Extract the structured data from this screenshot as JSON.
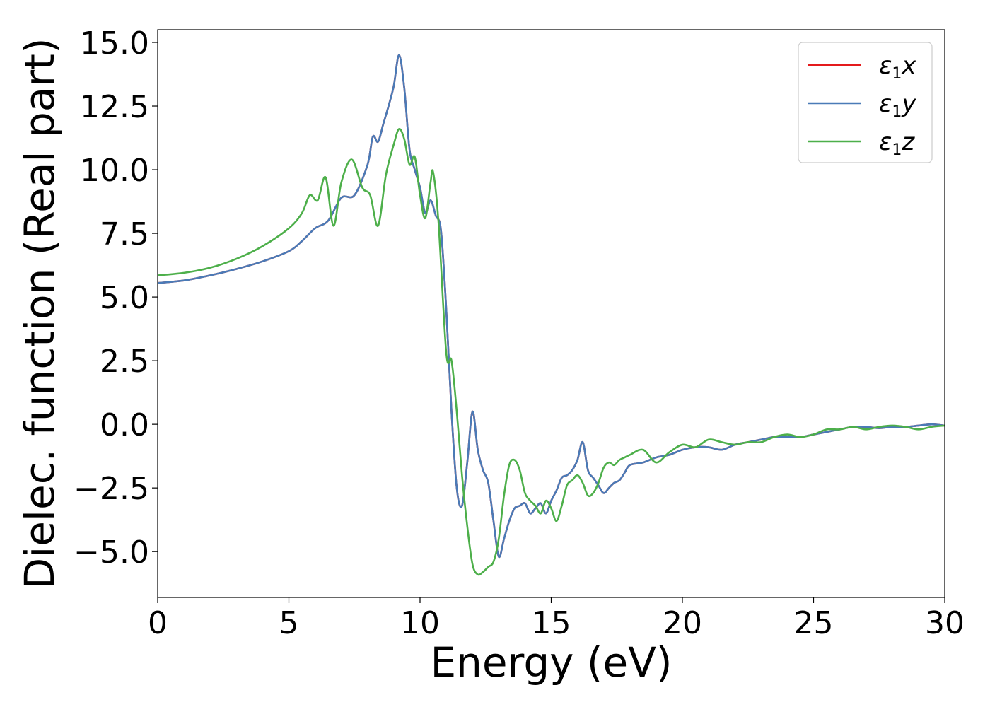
{
  "chart_data": {
    "type": "line",
    "title": "",
    "xlabel": "Energy (eV)",
    "ylabel": "Dielec. function (Real part)",
    "xlim": [
      0,
      30
    ],
    "ylim": [
      -6.8,
      15.5
    ],
    "x_ticks": [
      0,
      5,
      10,
      15,
      20,
      25,
      30
    ],
    "x_tick_labels": [
      "0",
      "5",
      "10",
      "15",
      "20",
      "25",
      "30"
    ],
    "y_ticks": [
      -5.0,
      -2.5,
      0.0,
      2.5,
      5.0,
      7.5,
      10.0,
      12.5,
      15.0
    ],
    "y_tick_labels": [
      "−5.0",
      "−2.5",
      "0.0",
      "2.5",
      "5.0",
      "7.5",
      "10.0",
      "12.5",
      "15.0"
    ],
    "grid": false,
    "legend_position": "top-right",
    "series": [
      {
        "name": "ε1x",
        "legend_symbol": "ε",
        "legend_sub": "1",
        "legend_suffix": "x",
        "color": "#e41a1c",
        "x": [
          0,
          1,
          2,
          3,
          4,
          5,
          5.5,
          6,
          6.5,
          7,
          7.5,
          8,
          8.2,
          8.4,
          8.6,
          8.8,
          9,
          9.2,
          9.4,
          9.6,
          9.8,
          10,
          10.2,
          10.4,
          10.6,
          10.8,
          11,
          11.2,
          11.4,
          11.6,
          11.8,
          12,
          12.2,
          12.4,
          12.6,
          12.8,
          13,
          13.2,
          13.4,
          13.6,
          13.8,
          14,
          14.2,
          14.4,
          14.6,
          14.8,
          15,
          15.2,
          15.4,
          15.6,
          15.8,
          16,
          16.2,
          16.4,
          16.6,
          16.8,
          17,
          17.2,
          17.4,
          17.6,
          17.8,
          18,
          18.5,
          19,
          19.5,
          20,
          20.5,
          21,
          21.5,
          22,
          22.5,
          23,
          23.5,
          24,
          24.5,
          25,
          25.5,
          26,
          26.5,
          27,
          27.5,
          28,
          28.5,
          29,
          29.5,
          30
        ],
        "y": [
          5.55,
          5.65,
          5.85,
          6.1,
          6.4,
          6.8,
          7.2,
          7.7,
          8.0,
          8.9,
          9.0,
          10.2,
          11.3,
          11.1,
          11.8,
          12.5,
          13.3,
          14.5,
          13.2,
          10.8,
          10.0,
          9.3,
          8.3,
          8.8,
          8.2,
          7.6,
          4.5,
          0.5,
          -2.5,
          -3.2,
          -1.5,
          0.5,
          -1.0,
          -1.8,
          -2.3,
          -3.8,
          -5.2,
          -4.5,
          -3.8,
          -3.3,
          -3.2,
          -3.1,
          -3.5,
          -3.3,
          -3.1,
          -3.5,
          -3.0,
          -2.6,
          -2.1,
          -2.0,
          -1.8,
          -1.4,
          -0.7,
          -1.8,
          -2.1,
          -2.4,
          -2.7,
          -2.5,
          -2.3,
          -2.2,
          -1.9,
          -1.6,
          -1.5,
          -1.3,
          -1.2,
          -1.0,
          -0.9,
          -0.9,
          -1.0,
          -0.8,
          -0.7,
          -0.6,
          -0.5,
          -0.5,
          -0.5,
          -0.4,
          -0.3,
          -0.2,
          -0.1,
          -0.1,
          -0.15,
          -0.1,
          -0.1,
          -0.05,
          0.0,
          -0.05
        ]
      },
      {
        "name": "ε1y",
        "legend_symbol": "ε",
        "legend_sub": "1",
        "legend_suffix": "y",
        "color": "#4a7bb7",
        "x": [
          0,
          1,
          2,
          3,
          4,
          5,
          5.5,
          6,
          6.5,
          7,
          7.5,
          8,
          8.2,
          8.4,
          8.6,
          8.8,
          9,
          9.2,
          9.4,
          9.6,
          9.8,
          10,
          10.2,
          10.4,
          10.6,
          10.8,
          11,
          11.2,
          11.4,
          11.6,
          11.8,
          12,
          12.2,
          12.4,
          12.6,
          12.8,
          13,
          13.2,
          13.4,
          13.6,
          13.8,
          14,
          14.2,
          14.4,
          14.6,
          14.8,
          15,
          15.2,
          15.4,
          15.6,
          15.8,
          16,
          16.2,
          16.4,
          16.6,
          16.8,
          17,
          17.2,
          17.4,
          17.6,
          17.8,
          18,
          18.5,
          19,
          19.5,
          20,
          20.5,
          21,
          21.5,
          22,
          22.5,
          23,
          23.5,
          24,
          24.5,
          25,
          25.5,
          26,
          26.5,
          27,
          27.5,
          28,
          28.5,
          29,
          29.5,
          30
        ],
        "y": [
          5.55,
          5.65,
          5.85,
          6.1,
          6.4,
          6.8,
          7.2,
          7.7,
          8.0,
          8.9,
          9.0,
          10.2,
          11.3,
          11.1,
          11.8,
          12.5,
          13.3,
          14.5,
          13.2,
          10.8,
          10.0,
          9.3,
          8.3,
          8.8,
          8.2,
          7.6,
          4.5,
          0.5,
          -2.5,
          -3.2,
          -1.5,
          0.5,
          -1.0,
          -1.8,
          -2.3,
          -3.8,
          -5.2,
          -4.5,
          -3.8,
          -3.3,
          -3.2,
          -3.1,
          -3.5,
          -3.3,
          -3.1,
          -3.5,
          -3.0,
          -2.6,
          -2.1,
          -2.0,
          -1.8,
          -1.4,
          -0.7,
          -1.8,
          -2.1,
          -2.4,
          -2.7,
          -2.5,
          -2.3,
          -2.2,
          -1.9,
          -1.6,
          -1.5,
          -1.3,
          -1.2,
          -1.0,
          -0.9,
          -0.9,
          -1.0,
          -0.8,
          -0.7,
          -0.6,
          -0.5,
          -0.5,
          -0.5,
          -0.4,
          -0.3,
          -0.2,
          -0.1,
          -0.1,
          -0.15,
          -0.1,
          -0.1,
          -0.05,
          0.0,
          -0.05
        ]
      },
      {
        "name": "ε1z",
        "legend_symbol": "ε",
        "legend_sub": "1",
        "legend_suffix": "z",
        "color": "#4daf4a",
        "x": [
          0,
          1,
          2,
          3,
          4,
          5,
          5.5,
          5.8,
          6.1,
          6.4,
          6.7,
          7.0,
          7.4,
          7.8,
          8.1,
          8.4,
          8.7,
          9.0,
          9.2,
          9.4,
          9.6,
          9.8,
          10.0,
          10.2,
          10.4,
          10.5,
          10.7,
          11.0,
          11.2,
          11.4,
          11.6,
          11.8,
          12.0,
          12.2,
          12.4,
          12.6,
          12.8,
          13.0,
          13.2,
          13.4,
          13.6,
          13.8,
          14.0,
          14.2,
          14.4,
          14.6,
          14.8,
          15.0,
          15.2,
          15.4,
          15.6,
          15.8,
          16.0,
          16.2,
          16.4,
          16.6,
          16.8,
          17.0,
          17.2,
          17.4,
          17.6,
          17.8,
          18.0,
          18.5,
          19.0,
          19.5,
          20.0,
          20.5,
          21.0,
          21.5,
          22.0,
          22.5,
          23.0,
          23.5,
          24.0,
          24.5,
          25.0,
          25.5,
          26.0,
          26.5,
          27.0,
          27.5,
          28.0,
          28.5,
          29.0,
          29.5,
          30.0
        ],
        "y": [
          5.85,
          5.95,
          6.15,
          6.5,
          7.0,
          7.7,
          8.3,
          9.0,
          8.8,
          9.7,
          7.8,
          9.5,
          10.4,
          9.3,
          9.0,
          7.8,
          9.8,
          11.0,
          11.6,
          11.2,
          10.2,
          10.5,
          9.0,
          8.1,
          9.5,
          9.9,
          8.0,
          2.8,
          2.5,
          0.5,
          -2.0,
          -4.0,
          -5.5,
          -5.9,
          -5.8,
          -5.6,
          -5.4,
          -4.5,
          -2.8,
          -1.6,
          -1.4,
          -1.8,
          -2.7,
          -3.0,
          -3.2,
          -3.5,
          -3.0,
          -3.3,
          -3.8,
          -3.2,
          -2.4,
          -2.2,
          -2.0,
          -2.3,
          -2.8,
          -2.7,
          -2.3,
          -1.7,
          -1.5,
          -1.6,
          -1.4,
          -1.3,
          -1.2,
          -1.0,
          -1.5,
          -1.1,
          -0.8,
          -0.9,
          -0.6,
          -0.7,
          -0.8,
          -0.7,
          -0.7,
          -0.5,
          -0.4,
          -0.5,
          -0.4,
          -0.2,
          -0.2,
          -0.1,
          -0.2,
          -0.1,
          -0.05,
          -0.1,
          -0.2,
          -0.1,
          -0.05
        ]
      }
    ]
  }
}
